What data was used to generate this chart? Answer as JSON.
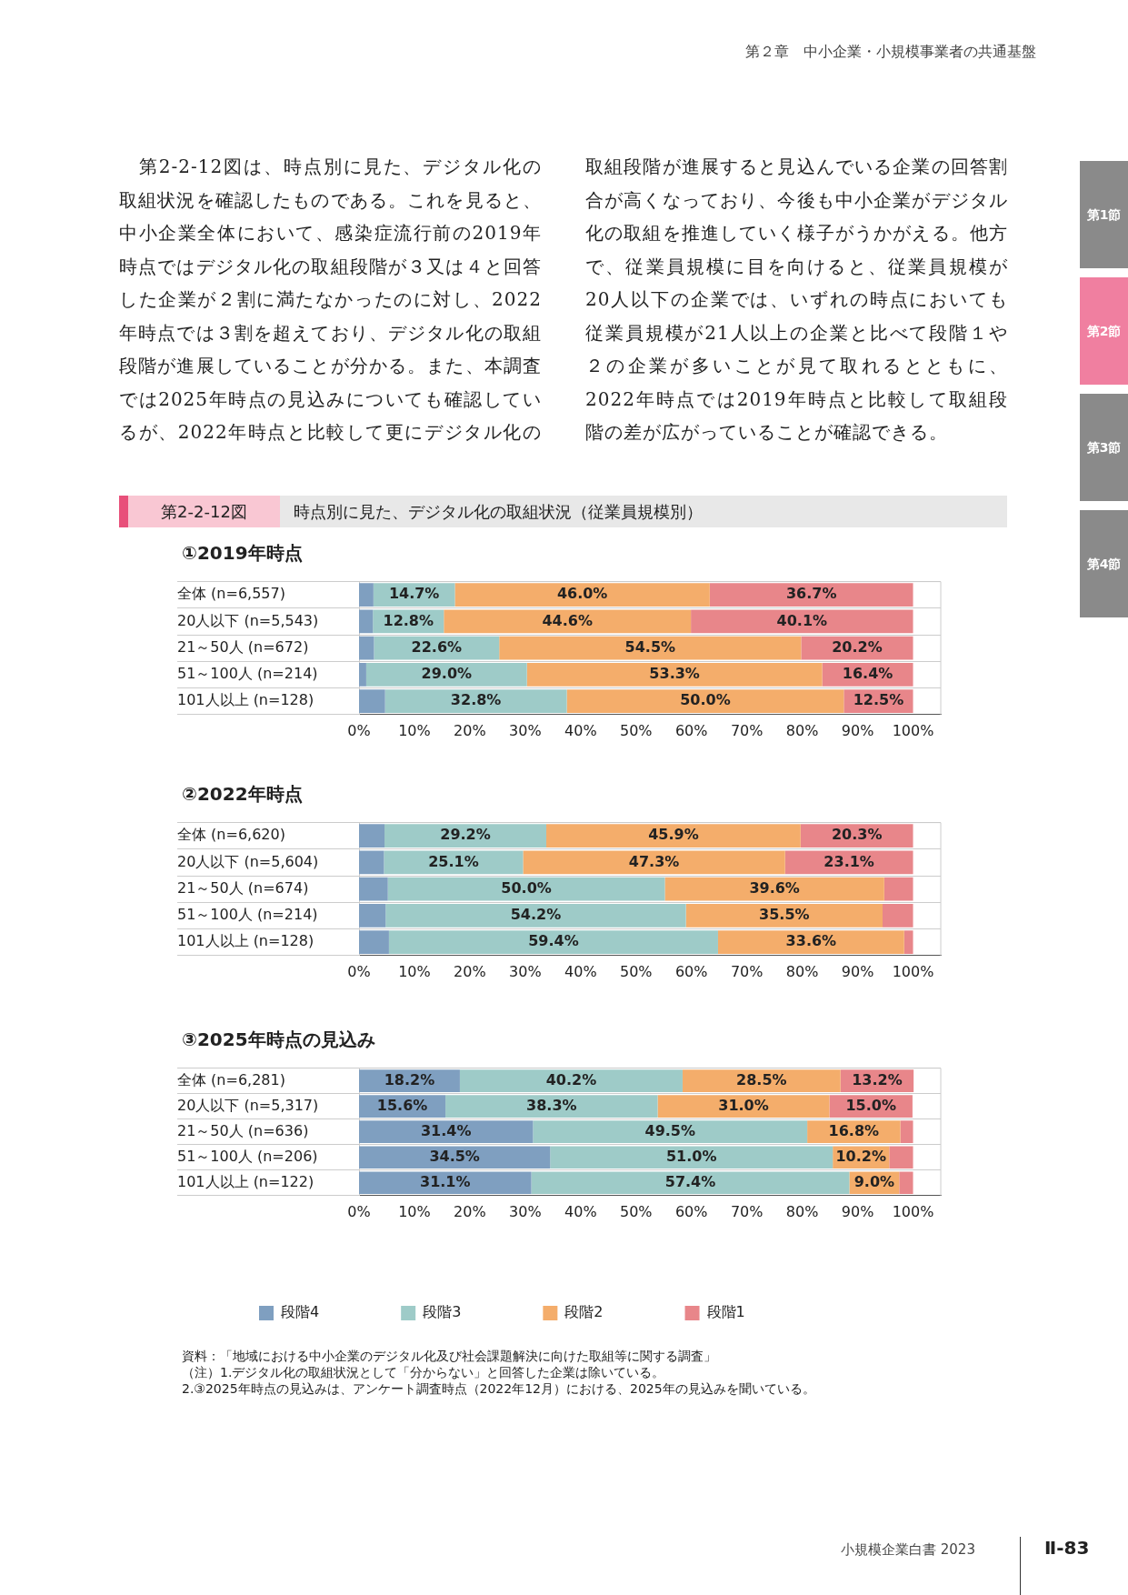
{
  "chart_data": [
    {
      "type": "other",
      "annotations": [
        "第２章　中小企業・小規模事業者の共通基盤",
        "　第2-2-12図は、時点別に見た、デジタル化の取組状況を確認したものである。これを見ると、中小企業全体において、感染症流行前の2019年時点ではデジタル化の取組段階が３又は４と回答した企業が２割に満たなかったのに対し、2022年時点では３割を超えており、デジタル化の取組段階が進展していることが分かる。また、本調査では2025年時点の見込みについても確認しているが、2022年時点と比較して更にデジタル化の取組段階が進展すると見込んでいる企業の回答割合が高くなっており、今後も中小企業がデジタル化の取組を推進していく様子がうかがえる。他方で、従業員規模に目を向けると、従業員規模が20人以下の企業では、いずれの時点においても従業員規模が21人以上の企業と比べて段階１や２の企業が多いことが見て取れるとともに、2022年時点では2019年時点と比較して取組段階の差が広がっていることが確認できる。",
        "第2-2-12図",
        "時点別に見た、デジタル化の取組状況（従業員規模別）",
        "第1節",
        "第2節",
        "第3節",
        "第4節",
        "小規模企業白書 2023",
        "Ⅱ-83"
      ]
    },
    {
      "type": "bar",
      "orientation": "horizontal",
      "stacked": true,
      "title": "①2019年時点",
      "grid": "y",
      "legend": false,
      "categories": [
        "全体 (n=6,557)",
        "20人以下 (n=5,543)",
        "21～50人 (n=672)",
        "51～100人 (n=214)",
        "101人以上 (n=128)"
      ],
      "xlim": [
        0,
        105
      ],
      "xticks": [
        {
          "value": 0,
          "label": "0%"
        },
        {
          "value": 10,
          "label": "10%"
        },
        {
          "value": 20,
          "label": "20%"
        },
        {
          "value": 30,
          "label": "30%"
        },
        {
          "value": 40,
          "label": "40%"
        },
        {
          "value": 50,
          "label": "50%"
        },
        {
          "value": 60,
          "label": "60%"
        },
        {
          "value": 70,
          "label": "70%"
        },
        {
          "value": 80,
          "label": "80%"
        },
        {
          "value": 90,
          "label": "90%"
        },
        {
          "value": 100,
          "label": "100%"
        }
      ],
      "series": [
        {
          "color": "#7f9fc0",
          "values": [
            2.6,
            2.5,
            2.7,
            1.3,
            4.7
          ]
        },
        {
          "color": "#9ecbc8",
          "values": [
            14.7,
            12.8,
            22.6,
            29.0,
            32.8
          ],
          "value_labels": [
            "14.7%",
            "12.8%",
            "22.6%",
            "29.0%",
            "32.8%"
          ]
        },
        {
          "color": "#f4ad6b",
          "values": [
            46.0,
            44.6,
            54.5,
            53.3,
            50.0
          ],
          "value_labels": [
            "46.0%",
            "44.6%",
            "54.5%",
            "53.3%",
            "50.0%"
          ]
        },
        {
          "color": "#e8868a",
          "values": [
            36.7,
            40.1,
            20.2,
            16.4,
            12.5
          ],
          "value_labels": [
            "36.7%",
            "40.1%",
            "20.2%",
            "16.4%",
            "12.5%"
          ]
        }
      ]
    },
    {
      "type": "bar",
      "orientation": "horizontal",
      "stacked": true,
      "title": "②2022年時点",
      "grid": "y",
      "legend": false,
      "categories": [
        "全体 (n=6,620)",
        "20人以下 (n=5,604)",
        "21～50人 (n=674)",
        "51～100人 (n=214)",
        "101人以上 (n=128)"
      ],
      "xlim": [
        0,
        105
      ],
      "xticks": [
        {
          "value": 0,
          "label": "0%"
        },
        {
          "value": 10,
          "label": "10%"
        },
        {
          "value": 20,
          "label": "20%"
        },
        {
          "value": 30,
          "label": "30%"
        },
        {
          "value": 40,
          "label": "40%"
        },
        {
          "value": 50,
          "label": "50%"
        },
        {
          "value": 60,
          "label": "60%"
        },
        {
          "value": 70,
          "label": "70%"
        },
        {
          "value": 80,
          "label": "80%"
        },
        {
          "value": 90,
          "label": "90%"
        },
        {
          "value": 100,
          "label": "100%"
        }
      ],
      "series": [
        {
          "color": "#7f9fc0",
          "values": [
            4.6,
            4.5,
            5.2,
            4.8,
            5.4
          ]
        },
        {
          "color": "#9ecbc8",
          "values": [
            29.2,
            25.1,
            50.0,
            54.2,
            59.4
          ],
          "value_labels": [
            "29.2%",
            "25.1%",
            "50.0%",
            "54.2%",
            "59.4%"
          ]
        },
        {
          "color": "#f4ad6b",
          "values": [
            45.9,
            47.3,
            39.6,
            35.5,
            33.6
          ],
          "value_labels": [
            "45.9%",
            "47.3%",
            "39.6%",
            "35.5%",
            "33.6%"
          ]
        },
        {
          "color": "#e8868a",
          "values": [
            20.3,
            23.1,
            5.2,
            5.5,
            1.6
          ],
          "value_labels": [
            "20.3%",
            "23.1%",
            null,
            null,
            null
          ]
        }
      ]
    },
    {
      "type": "bar",
      "orientation": "horizontal",
      "stacked": true,
      "title": "③2025年時点の見込み",
      "grid": "y",
      "legend": "bottom",
      "categories": [
        "全体 (n=6,281)",
        "20人以下 (n=5,317)",
        "21～50人 (n=636)",
        "51～100人 (n=206)",
        "101人以上 (n=122)"
      ],
      "xlim": [
        0,
        105
      ],
      "xticks": [
        {
          "value": 0,
          "label": "0%"
        },
        {
          "value": 10,
          "label": "10%"
        },
        {
          "value": 20,
          "label": "20%"
        },
        {
          "value": 30,
          "label": "30%"
        },
        {
          "value": 40,
          "label": "40%"
        },
        {
          "value": 50,
          "label": "50%"
        },
        {
          "value": 60,
          "label": "60%"
        },
        {
          "value": 70,
          "label": "70%"
        },
        {
          "value": 80,
          "label": "80%"
        },
        {
          "value": 90,
          "label": "90%"
        },
        {
          "value": 100,
          "label": "100%"
        }
      ],
      "series": [
        {
          "name": "段階4",
          "color": "#7f9fc0",
          "values": [
            18.2,
            15.6,
            31.4,
            34.5,
            31.1
          ],
          "value_labels": [
            "18.2%",
            "15.6%",
            "31.4%",
            "34.5%",
            "31.1%"
          ]
        },
        {
          "name": "段階3",
          "color": "#9ecbc8",
          "values": [
            40.2,
            38.3,
            49.5,
            51.0,
            57.4
          ],
          "value_labels": [
            "40.2%",
            "38.3%",
            "49.5%",
            "51.0%",
            "57.4%"
          ]
        },
        {
          "name": "段階2",
          "color": "#f4ad6b",
          "values": [
            28.5,
            31.0,
            16.8,
            10.2,
            9.0
          ],
          "value_labels": [
            "28.5%",
            "31.0%",
            "16.8%",
            "10.2%",
            "9.0%"
          ]
        },
        {
          "name": "段階1",
          "color": "#e8868a",
          "values": [
            13.2,
            15.0,
            2.3,
            4.3,
            2.5
          ],
          "value_labels": [
            "13.2%",
            "15.0%",
            null,
            null,
            null
          ]
        }
      ],
      "annotations": [
        "資料：「地域における中小企業のデジタル化及び社会課題解決に向けた取組等に関する調査」",
        "（注）1.デジタル化の取組状況として「分からない」と回答した企業は除いている。",
        "2.③2025年時点の見込みは、アンケート調査時点（2022年12月）における、2025年の見込みを聞いている。"
      ]
    }
  ]
}
